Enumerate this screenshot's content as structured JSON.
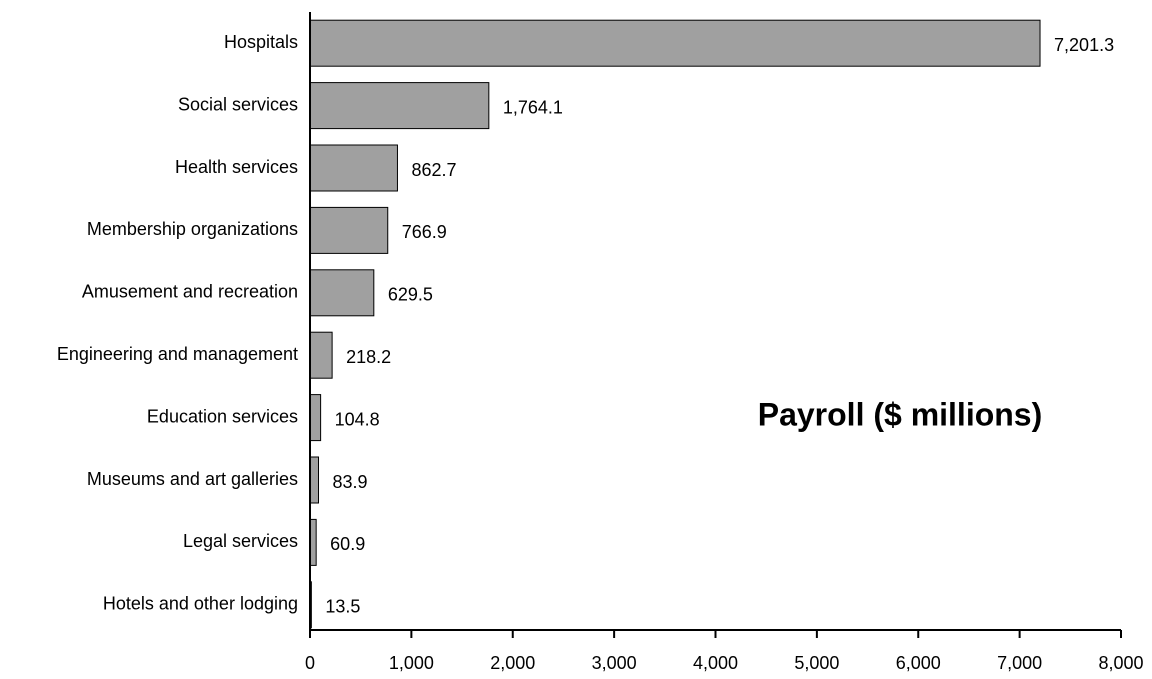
{
  "chart_data": {
    "type": "hbar",
    "title": "Payroll ($ millions)",
    "categories": [
      "Hospitals",
      "Social services",
      "Health services",
      "Membership organizations",
      "Amusement and recreation",
      "Engineering and management",
      "Education services",
      "Museums and art galleries",
      "Legal services",
      "Hotels and other lodging"
    ],
    "values": [
      7201.3,
      1764.1,
      862.7,
      766.9,
      629.5,
      218.2,
      104.8,
      83.9,
      60.9,
      13.5
    ],
    "value_labels": [
      "7,201.3",
      "1,764.1",
      "862.7",
      "766.9",
      "629.5",
      "218.2",
      "104.8",
      "83.9",
      "60.9",
      "13.5"
    ],
    "color": "#a0a0a0",
    "xlim": [
      0,
      8000
    ],
    "xticks": [
      0,
      {
        "value": 1000,
        "label": "1,000"
      },
      {
        "value": 2000,
        "label": "2,000"
      },
      {
        "value": 3000,
        "label": "3,000"
      },
      {
        "value": 4000,
        "label": "4,000"
      },
      {
        "value": 5000,
        "label": "5,000"
      },
      {
        "value": 6000,
        "label": "6,000"
      },
      {
        "value": 7000,
        "label": "7,000"
      },
      {
        "value": 8000,
        "label": "8,000"
      }
    ]
  }
}
